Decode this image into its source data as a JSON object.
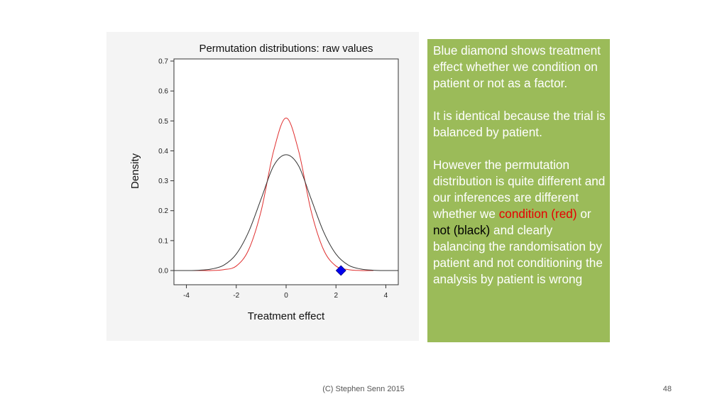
{
  "chart_data": {
    "type": "line",
    "title": "Permutation distributions: raw values",
    "xlabel": "Treatment effect",
    "ylabel": "Density",
    "xlim": [
      -4.5,
      4.5
    ],
    "ylim": [
      0,
      0.7
    ],
    "xticks": [
      -4,
      -2,
      0,
      2,
      4
    ],
    "yticks": [
      0.0,
      0.1,
      0.2,
      0.3,
      0.4,
      0.5,
      0.6,
      0.7
    ],
    "ytick_labels": [
      "0.0",
      "0.1",
      "0.2",
      "0.3",
      "0.4",
      "0.5",
      "0.6",
      "0.7"
    ],
    "grid": false,
    "legend": "none",
    "series": [
      {
        "color": "#e03030",
        "x": [
          -4.5,
          -3.5,
          -3.0,
          -2.5,
          -2.0,
          -1.5,
          -1.0,
          -0.5,
          0.0,
          0.5,
          1.0,
          1.5,
          2.0,
          2.5,
          3.0,
          3.5
        ],
        "y": [
          0.0,
          0.0,
          0.0,
          0.003,
          0.015,
          0.07,
          0.2,
          0.4,
          0.51,
          0.4,
          0.2,
          0.07,
          0.015,
          0.003,
          0.0,
          0.0
        ]
      },
      {
        "color": "#333333",
        "x": [
          -4.5,
          -4.0,
          -3.5,
          -3.0,
          -2.5,
          -2.0,
          -1.5,
          -1.0,
          -0.5,
          0.0,
          0.5,
          1.0,
          1.5,
          2.0,
          2.5,
          3.0,
          3.5,
          4.0,
          4.5
        ],
        "y": [
          0.0,
          0.0,
          0.001,
          0.005,
          0.018,
          0.055,
          0.13,
          0.24,
          0.35,
          0.387,
          0.35,
          0.24,
          0.13,
          0.055,
          0.018,
          0.005,
          0.001,
          0.0,
          0.0
        ]
      }
    ],
    "markers": [
      {
        "shape": "diamond",
        "color": "#0000ee",
        "x": 2.2,
        "y": 0.0
      }
    ]
  },
  "note": {
    "p1": "Blue diamond shows treatment effect whether we condition on patient or not as a factor.",
    "p2": "It is identical because the trial is balanced by patient.",
    "p3_lead": "However the permutation distribution is quite different and our inferences are different  whether we",
    "p3_red": "condition  (red)",
    "p3_or": "or",
    "p3_not": "not",
    "p3_black": "(black)",
    "p3_tail": "and clearly balancing the randomisation by patient and not conditioning the analysis by patient is wrong"
  },
  "footer": {
    "copyright": "(C) Stephen Senn 2015",
    "slide_number": "48"
  }
}
